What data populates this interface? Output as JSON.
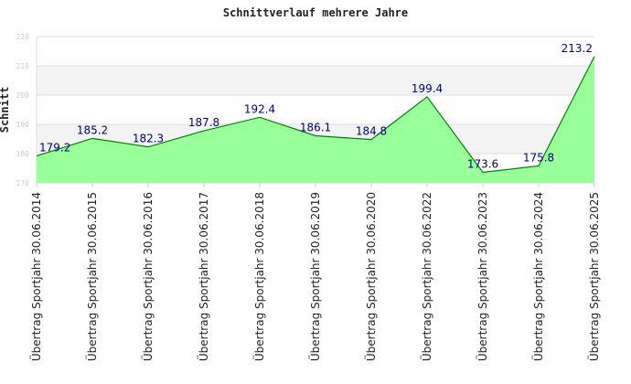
{
  "chart_data": {
    "type": "area",
    "title": "Schnittverlauf mehrere Jahre",
    "ylabel": "Schnitt",
    "xlabel": "",
    "ylim": [
      170,
      220
    ],
    "yticks": [
      "170",
      "180",
      "190",
      "200",
      "210",
      "220"
    ],
    "categories": [
      "Übertrag Sportjahr 30.06.2014",
      "Übertrag Sportjahr 30.06.2015",
      "Übertrag Sportjahr 30.06.2016",
      "Übertrag Sportjahr 30.06.2017",
      "Übertrag Sportjahr 30.06.2018",
      "Übertrag Sportjahr 30.06.2019",
      "Übertrag Sportjahr 30.06.2020",
      "Übertrag Sportjahr 30.06.2022",
      "Übertrag Sportjahr 30.06.2023",
      "Übertrag Sportjahr 30.06.2024",
      "Übertrag Sportjahr 30.06.2025"
    ],
    "values": [
      179.2,
      185.2,
      182.3,
      187.8,
      192.4,
      186.1,
      184.8,
      199.4,
      173.6,
      175.8,
      213.2
    ],
    "labels": [
      "179.2",
      "185.2",
      "182.3",
      "187.8",
      "192.4",
      "186.1",
      "184.8",
      "199.4",
      "173.6",
      "175.8",
      "213.2"
    ],
    "colors": {
      "fill": "#99ff99",
      "line": "#008000",
      "label": "#000080"
    }
  }
}
